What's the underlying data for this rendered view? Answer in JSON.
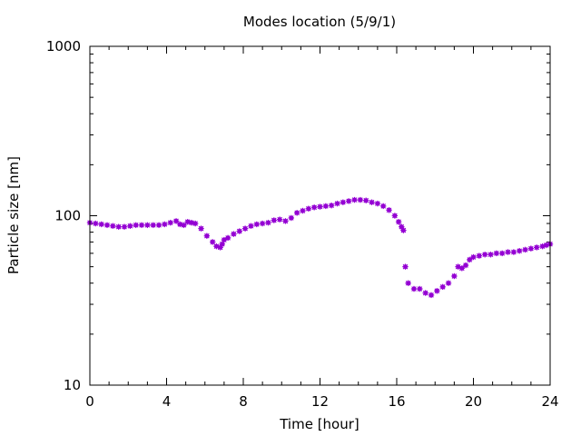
{
  "chart_data": {
    "type": "scatter",
    "title": "Modes location (5/9/1)",
    "xlabel": "Time [hour]",
    "ylabel": "Particle size [nm]",
    "xlim": [
      0,
      24
    ],
    "ylim": [
      10,
      1000
    ],
    "yscale": "log",
    "xticks": [
      0,
      4,
      8,
      12,
      16,
      20,
      24
    ],
    "yticks": [
      10,
      100,
      1000
    ],
    "grid": false,
    "legend": "none",
    "marker_color": "#9400d3",
    "series": [
      {
        "x": [
          0.0,
          0.3,
          0.6,
          0.9,
          1.2,
          1.5,
          1.8,
          2.1,
          2.4,
          2.7,
          3.0,
          3.3,
          3.6,
          3.9,
          4.2,
          4.5,
          4.7,
          4.9,
          5.1,
          5.3,
          5.5,
          5.8,
          6.1,
          6.4,
          6.6,
          6.8,
          6.9,
          7.0,
          7.2,
          7.5,
          7.8,
          8.1,
          8.4,
          8.7,
          9.0,
          9.3,
          9.6,
          9.9,
          10.2,
          10.5,
          10.8,
          11.1,
          11.4,
          11.7,
          12.0,
          12.3,
          12.6,
          12.9,
          13.2,
          13.5,
          13.8,
          14.1,
          14.4,
          14.7,
          15.0,
          15.3,
          15.6,
          15.9,
          16.1,
          16.25,
          16.35,
          16.45,
          16.6,
          16.9,
          17.2,
          17.5,
          17.8,
          18.1,
          18.4,
          18.7,
          19.0,
          19.2,
          19.4,
          19.6,
          19.8,
          20.0,
          20.3,
          20.6,
          20.9,
          21.2,
          21.5,
          21.8,
          22.1,
          22.4,
          22.7,
          23.0,
          23.3,
          23.6,
          23.8,
          24.0
        ],
        "y": [
          91,
          90,
          89,
          88,
          87,
          86,
          86,
          87,
          88,
          88,
          88,
          88,
          88,
          89,
          91,
          93,
          89,
          88,
          92,
          91,
          90,
          84,
          76,
          70,
          66,
          65,
          68,
          72,
          74,
          78,
          81,
          84,
          87,
          89,
          90,
          91,
          94,
          95,
          93,
          97,
          104,
          107,
          110,
          112,
          113,
          114,
          115,
          118,
          120,
          122,
          124,
          124,
          123,
          120,
          118,
          114,
          108,
          100,
          92,
          86,
          82,
          50,
          40,
          37,
          37,
          35,
          34,
          36,
          38,
          40,
          44,
          50,
          49,
          51,
          55,
          57,
          58,
          59,
          59,
          60,
          60,
          61,
          61,
          62,
          63,
          64,
          65,
          66,
          67,
          68
        ]
      }
    ]
  }
}
